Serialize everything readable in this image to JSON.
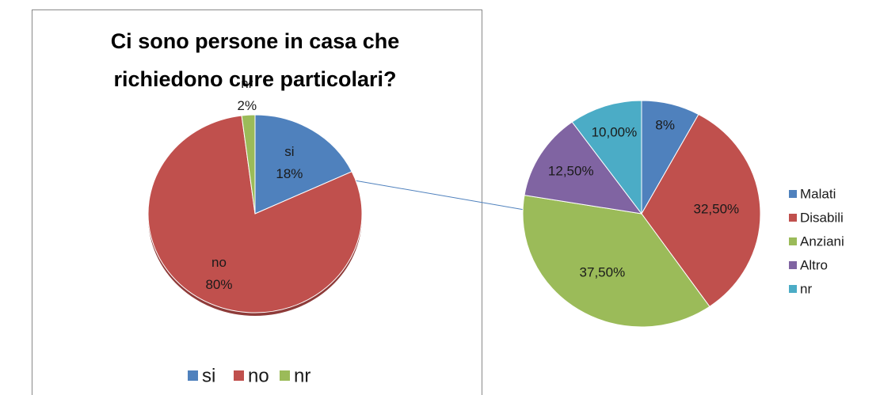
{
  "chart_data": [
    {
      "type": "pie",
      "title": "Ci sono persone in casa che richiedono cure particolari?",
      "categories": [
        "si",
        "no",
        "nr"
      ],
      "values": [
        18,
        80,
        2
      ],
      "value_labels": [
        "18%",
        "80%",
        "2%"
      ],
      "colors": [
        "#4f81bd",
        "#c0504d",
        "#9bbb59"
      ],
      "legend": "bottom"
    },
    {
      "type": "pie",
      "categories": [
        "Malati",
        "Disabili",
        "Anziani",
        "Altro",
        "nr"
      ],
      "values": [
        8,
        32.5,
        37.5,
        12.5,
        10
      ],
      "value_labels": [
        "8%",
        "32,50%",
        "37,50%",
        "12,50%",
        "10,00%"
      ],
      "colors": [
        "#4f81bd",
        "#c0504d",
        "#9bbb59",
        "#8064a2",
        "#4bacc6"
      ],
      "legend": "right"
    }
  ]
}
